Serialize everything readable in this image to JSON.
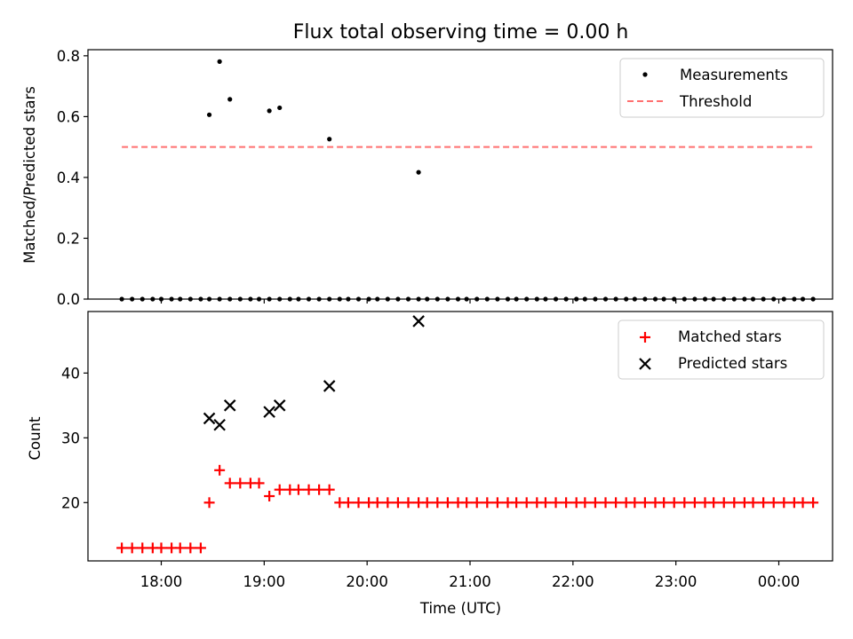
{
  "chart_data": [
    {
      "type": "scatter",
      "title": "Flux total observing time = 0.00 h",
      "xlabel": "",
      "ylabel": "Matched/Predicted stars",
      "ylim": [
        0.0,
        0.82
      ],
      "yticks": [
        0.0,
        0.2,
        0.4,
        0.6,
        0.8
      ],
      "ytick_labels": [
        "0.0",
        "0.2",
        "0.4",
        "0.6",
        "0.8"
      ],
      "xticks": [
        "18:00",
        "19:00",
        "20:00",
        "21:00",
        "22:00",
        "23:00",
        "00:00"
      ],
      "grid": false,
      "legend_position": "top-right",
      "series": [
        {
          "name": "Measurements",
          "kind": "scatter",
          "marker": "dot",
          "color": "#000000",
          "x": [
            "17:37",
            "17:43",
            "17:49",
            "17:55",
            "18:00",
            "18:06",
            "18:11",
            "18:17",
            "18:23",
            "18:28",
            "18:34",
            "18:40",
            "18:46",
            "18:52",
            "18:57",
            "19:03",
            "19:09",
            "19:15",
            "19:20",
            "19:26",
            "19:32",
            "19:38",
            "19:44",
            "19:49",
            "19:55",
            "20:01",
            "20:06",
            "20:12",
            "20:18",
            "20:24",
            "20:30",
            "20:35",
            "20:41",
            "20:47",
            "20:53",
            "20:58",
            "21:04",
            "21:10",
            "21:16",
            "21:22",
            "21:27",
            "21:33",
            "21:39",
            "21:44",
            "21:50",
            "21:56",
            "22:02",
            "22:07",
            "22:13",
            "22:19",
            "22:25",
            "22:31",
            "22:36",
            "22:42",
            "22:48",
            "22:53",
            "22:59",
            "23:05",
            "23:11",
            "23:17",
            "23:22",
            "23:28",
            "23:34",
            "23:40",
            "23:45",
            "23:51",
            "23:57",
            "00:03",
            "00:09",
            "00:14",
            "00:20"
          ],
          "y": [
            0.0,
            0.0,
            0.0,
            0.0,
            0.0,
            0.0,
            0.0,
            0.0,
            0.0,
            0.0,
            0.0,
            0.0,
            0.0,
            0.0,
            0.0,
            0.0,
            0.0,
            0.0,
            0.0,
            0.0,
            0.0,
            0.0,
            0.0,
            0.0,
            0.0,
            0.0,
            0.0,
            0.0,
            0.0,
            0.0,
            0.0,
            0.0,
            0.0,
            0.0,
            0.0,
            0.0,
            0.0,
            0.0,
            0.0,
            0.0,
            0.0,
            0.0,
            0.0,
            0.0,
            0.0,
            0.0,
            0.0,
            0.0,
            0.0,
            0.0,
            0.0,
            0.0,
            0.0,
            0.0,
            0.0,
            0.0,
            0.0,
            0.0,
            0.0,
            0.0,
            0.0,
            0.0,
            0.0,
            0.0,
            0.0,
            0.0,
            0.0,
            0.0,
            0.0,
            0.0,
            0.0
          ],
          "x_extra": [
            "18:28",
            "18:34",
            "18:40",
            "19:03",
            "19:09",
            "19:38",
            "20:30"
          ],
          "y_extra": [
            0.606,
            0.781,
            0.657,
            0.619,
            0.629,
            0.526,
            0.417
          ]
        },
        {
          "name": "Threshold",
          "kind": "line",
          "style": "dashed",
          "color": "#ff7070",
          "x": [
            "17:37",
            "00:20"
          ],
          "y": [
            0.5,
            0.5
          ]
        }
      ]
    },
    {
      "type": "scatter",
      "title": "",
      "xlabel": "Time (UTC)",
      "ylabel": "Count",
      "ylim": [
        11,
        49.5
      ],
      "yticks": [
        20,
        30,
        40
      ],
      "ytick_labels": [
        "20",
        "30",
        "40"
      ],
      "xticks": [
        "18:00",
        "19:00",
        "20:00",
        "21:00",
        "22:00",
        "23:00",
        "00:00"
      ],
      "grid": false,
      "legend_position": "top-right",
      "series": [
        {
          "name": "Matched stars",
          "kind": "scatter",
          "marker": "plus",
          "color": "#ff0000",
          "x": [
            "17:37",
            "17:43",
            "17:49",
            "17:55",
            "18:00",
            "18:06",
            "18:11",
            "18:17",
            "18:23",
            "18:28",
            "18:34",
            "18:40",
            "18:46",
            "18:52",
            "18:57",
            "19:03",
            "19:09",
            "19:15",
            "19:20",
            "19:26",
            "19:32",
            "19:38",
            "19:44",
            "19:49",
            "19:55",
            "20:01",
            "20:06",
            "20:12",
            "20:18",
            "20:24",
            "20:30",
            "20:35",
            "20:41",
            "20:47",
            "20:53",
            "20:58",
            "21:04",
            "21:10",
            "21:16",
            "21:22",
            "21:27",
            "21:33",
            "21:39",
            "21:44",
            "21:50",
            "21:56",
            "22:02",
            "22:07",
            "22:13",
            "22:19",
            "22:25",
            "22:31",
            "22:36",
            "22:42",
            "22:48",
            "22:53",
            "22:59",
            "23:05",
            "23:11",
            "23:17",
            "23:22",
            "23:28",
            "23:34",
            "23:40",
            "23:45",
            "23:51",
            "23:57",
            "00:03",
            "00:09",
            "00:14",
            "00:20"
          ],
          "y": [
            13,
            13,
            13,
            13,
            13,
            13,
            13,
            13,
            13,
            20,
            25,
            23,
            23,
            23,
            23,
            21,
            22,
            22,
            22,
            22,
            22,
            22,
            20,
            20,
            20,
            20,
            20,
            20,
            20,
            20,
            20,
            20,
            20,
            20,
            20,
            20,
            20,
            20,
            20,
            20,
            20,
            20,
            20,
            20,
            20,
            20,
            20,
            20,
            20,
            20,
            20,
            20,
            20,
            20,
            20,
            20,
            20,
            20,
            20,
            20,
            20,
            20,
            20,
            20,
            20,
            20,
            20,
            20,
            20,
            20,
            20
          ]
        },
        {
          "name": "Predicted stars",
          "kind": "scatter",
          "marker": "x",
          "color": "#000000",
          "x": [
            "18:28",
            "18:34",
            "18:40",
            "19:03",
            "19:09",
            "19:38",
            "20:30"
          ],
          "y": [
            33,
            32,
            35,
            34,
            35,
            38,
            48
          ]
        }
      ]
    }
  ]
}
